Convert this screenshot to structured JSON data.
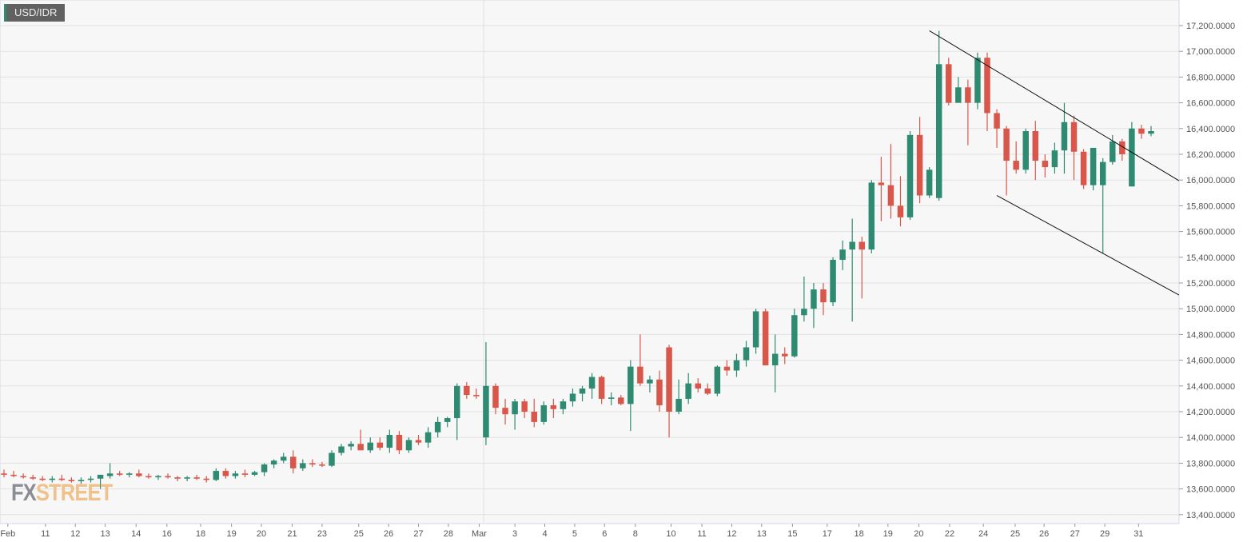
{
  "symbol": "USD/IDR",
  "logo": {
    "part1": "FX",
    "part2": "STREET"
  },
  "colors": {
    "up": "#2e8b72",
    "down": "#d9574a",
    "background": "#f7f7f7",
    "grid": "#e2e2e2",
    "border": "#d5d9ea",
    "trendline": "#111111"
  },
  "chart_data": {
    "type": "candlestick",
    "title": "USD/IDR",
    "grid": true,
    "ylim": [
      13300,
      17300
    ],
    "y_ticks": [
      "13,400.0000",
      "13,600.0000",
      "13,800.0000",
      "14,000.0000",
      "14,200.0000",
      "14,400.0000",
      "14,600.0000",
      "14,800.0000",
      "15,000.0000",
      "15,200.0000",
      "15,400.0000",
      "15,600.0000",
      "15,800.0000",
      "16,000.0000",
      "16,200.0000",
      "16,400.0000",
      "16,600.0000",
      "16,800.0000",
      "17,000.0000",
      "17,200.0000"
    ],
    "y_tick_values": [
      13400,
      13600,
      13800,
      14000,
      14200,
      14400,
      14600,
      14800,
      15000,
      15200,
      15400,
      15600,
      15800,
      16000,
      16200,
      16400,
      16600,
      16800,
      17000,
      17200
    ],
    "x_ticks": [
      {
        "label": "Feb",
        "i": 0.4
      },
      {
        "label": "11",
        "i": 4.3
      },
      {
        "label": "12",
        "i": 7.4
      },
      {
        "label": "13",
        "i": 10.5
      },
      {
        "label": "14",
        "i": 13.7
      },
      {
        "label": "16",
        "i": 16.9
      },
      {
        "label": "18",
        "i": 20.4
      },
      {
        "label": "19",
        "i": 23.6
      },
      {
        "label": "20",
        "i": 26.7
      },
      {
        "label": "21",
        "i": 29.9
      },
      {
        "label": "23",
        "i": 33
      },
      {
        "label": "25",
        "i": 36.8
      },
      {
        "label": "26",
        "i": 39.9
      },
      {
        "label": "27",
        "i": 43
      },
      {
        "label": "28",
        "i": 46.1
      },
      {
        "label": "Mar",
        "i": 49.3
      },
      {
        "label": "3",
        "i": 53
      },
      {
        "label": "4",
        "i": 56.1
      },
      {
        "label": "5",
        "i": 59.2
      },
      {
        "label": "6",
        "i": 62.3
      },
      {
        "label": "8",
        "i": 65.5
      },
      {
        "label": "10",
        "i": 69.2
      },
      {
        "label": "11",
        "i": 72.4
      },
      {
        "label": "12",
        "i": 75.5
      },
      {
        "label": "13",
        "i": 78.6
      },
      {
        "label": "15",
        "i": 81.8
      },
      {
        "label": "17",
        "i": 85.4
      },
      {
        "label": "18",
        "i": 88.7
      },
      {
        "label": "19",
        "i": 91.7
      },
      {
        "label": "20",
        "i": 94.9
      },
      {
        "label": "22",
        "i": 98.1
      },
      {
        "label": "24",
        "i": 101.6
      },
      {
        "label": "25",
        "i": 104.9
      },
      {
        "label": "26",
        "i": 107.9
      },
      {
        "label": "27",
        "i": 111.1
      },
      {
        "label": "29",
        "i": 114.2
      },
      {
        "label": "31",
        "i": 117.7
      }
    ],
    "ohlc": [
      [
        13720,
        13750,
        13690,
        13710
      ],
      [
        13710,
        13740,
        13690,
        13700
      ],
      [
        13700,
        13720,
        13680,
        13690
      ],
      [
        13690,
        13710,
        13670,
        13680
      ],
      [
        13680,
        13700,
        13660,
        13670
      ],
      [
        13670,
        13700,
        13650,
        13680
      ],
      [
        13680,
        13710,
        13660,
        13670
      ],
      [
        13670,
        13690,
        13650,
        13660
      ],
      [
        13660,
        13690,
        13640,
        13670
      ],
      [
        13670,
        13700,
        13650,
        13680
      ],
      [
        13680,
        13700,
        13600,
        13710
      ],
      [
        13700,
        13800,
        13680,
        13720
      ],
      [
        13720,
        13740,
        13700,
        13710
      ],
      [
        13710,
        13730,
        13690,
        13720
      ],
      [
        13720,
        13750,
        13690,
        13700
      ],
      [
        13700,
        13720,
        13680,
        13690
      ],
      [
        13690,
        13710,
        13670,
        13700
      ],
      [
        13700,
        13720,
        13680,
        13690
      ],
      [
        13690,
        13700,
        13660,
        13680
      ],
      [
        13680,
        13700,
        13660,
        13690
      ],
      [
        13690,
        13710,
        13670,
        13680
      ],
      [
        13680,
        13700,
        13650,
        13670
      ],
      [
        13670,
        13760,
        13660,
        13740
      ],
      [
        13740,
        13760,
        13680,
        13700
      ],
      [
        13700,
        13740,
        13680,
        13720
      ],
      [
        13720,
        13750,
        13690,
        13710
      ],
      [
        13710,
        13740,
        13700,
        13730
      ],
      [
        13730,
        13800,
        13700,
        13790
      ],
      [
        13790,
        13830,
        13760,
        13820
      ],
      [
        13820,
        13880,
        13800,
        13850
      ],
      [
        13850,
        13900,
        13720,
        13760
      ],
      [
        13760,
        13830,
        13740,
        13800
      ],
      [
        13800,
        13830,
        13770,
        13790
      ],
      [
        13790,
        13810,
        13770,
        13780
      ],
      [
        13780,
        13900,
        13770,
        13880
      ],
      [
        13880,
        13950,
        13860,
        13930
      ],
      [
        13930,
        13970,
        13900,
        13950
      ],
      [
        13950,
        14060,
        13900,
        13900
      ],
      [
        13900,
        14000,
        13880,
        13960
      ],
      [
        13960,
        14000,
        13900,
        13920
      ],
      [
        13920,
        14060,
        13880,
        14020
      ],
      [
        14020,
        14050,
        13870,
        13900
      ],
      [
        13900,
        14000,
        13880,
        13980
      ],
      [
        13980,
        14020,
        13940,
        13960
      ],
      [
        13960,
        14080,
        13920,
        14040
      ],
      [
        14040,
        14160,
        14000,
        14120
      ],
      [
        14120,
        14160,
        14080,
        14150
      ],
      [
        14150,
        14420,
        13980,
        14400
      ],
      [
        14400,
        14430,
        14300,
        14330
      ],
      [
        14330,
        14380,
        14300,
        14320
      ],
      [
        14000,
        14740,
        13940,
        14400
      ],
      [
        14400,
        14420,
        14180,
        14230
      ],
      [
        14230,
        14300,
        14100,
        14180
      ],
      [
        14180,
        14300,
        14060,
        14280
      ],
      [
        14280,
        14300,
        14150,
        14200
      ],
      [
        14200,
        14300,
        14080,
        14120
      ],
      [
        14120,
        14280,
        14100,
        14250
      ],
      [
        14250,
        14300,
        14150,
        14220
      ],
      [
        14220,
        14300,
        14180,
        14280
      ],
      [
        14280,
        14380,
        14240,
        14340
      ],
      [
        14340,
        14400,
        14280,
        14380
      ],
      [
        14380,
        14500,
        14300,
        14470
      ],
      [
        14470,
        14480,
        14260,
        14300
      ],
      [
        14300,
        14350,
        14250,
        14310
      ],
      [
        14310,
        14330,
        14250,
        14260
      ],
      [
        14260,
        14600,
        14050,
        14550
      ],
      [
        14550,
        14800,
        14400,
        14420
      ],
      [
        14420,
        14480,
        14350,
        14450
      ],
      [
        14450,
        14520,
        14200,
        14250
      ],
      [
        14700,
        14720,
        14000,
        14200
      ],
      [
        14200,
        14450,
        14180,
        14300
      ],
      [
        14300,
        14500,
        14260,
        14420
      ],
      [
        14420,
        14460,
        14350,
        14380
      ],
      [
        14380,
        14420,
        14330,
        14340
      ],
      [
        14340,
        14560,
        14320,
        14550
      ],
      [
        14550,
        14600,
        14480,
        14520
      ],
      [
        14520,
        14650,
        14470,
        14600
      ],
      [
        14600,
        14750,
        14550,
        14700
      ],
      [
        14700,
        15000,
        14650,
        14980
      ],
      [
        14980,
        15000,
        14560,
        14560
      ],
      [
        14560,
        14800,
        14350,
        14650
      ],
      [
        14650,
        14700,
        14570,
        14630
      ],
      [
        14630,
        15000,
        14620,
        14950
      ],
      [
        14950,
        15250,
        14900,
        15000
      ],
      [
        15000,
        15200,
        14850,
        15150
      ],
      [
        15150,
        15200,
        14950,
        15050
      ],
      [
        15050,
        15400,
        15020,
        15380
      ],
      [
        15380,
        15530,
        15300,
        15460
      ],
      [
        15460,
        15700,
        14900,
        15520
      ],
      [
        15520,
        15560,
        15080,
        15460
      ],
      [
        15460,
        16000,
        15430,
        15980
      ],
      [
        15980,
        16180,
        15680,
        15960
      ],
      [
        15960,
        16280,
        15700,
        15800
      ],
      [
        15800,
        16030,
        15640,
        15710
      ],
      [
        15710,
        16380,
        15690,
        16350
      ],
      [
        16350,
        16490,
        15820,
        15880
      ],
      [
        15880,
        16100,
        15860,
        16080
      ],
      [
        15860,
        17160,
        15840,
        16900
      ],
      [
        16900,
        16950,
        16580,
        16600
      ],
      [
        16600,
        16800,
        16600,
        16720
      ],
      [
        16720,
        16780,
        16270,
        16600
      ],
      [
        16600,
        16990,
        16550,
        16950
      ],
      [
        16950,
        16990,
        16380,
        16520
      ],
      [
        16520,
        16550,
        16250,
        16400
      ],
      [
        16400,
        16420,
        15880,
        16150
      ],
      [
        16150,
        16300,
        16050,
        16080
      ],
      [
        16080,
        16400,
        16050,
        16380
      ],
      [
        16380,
        16460,
        16000,
        16150
      ],
      [
        16150,
        16200,
        16020,
        16100
      ],
      [
        16100,
        16290,
        16050,
        16230
      ],
      [
        16230,
        16600,
        16050,
        16450
      ],
      [
        16450,
        16500,
        16000,
        16220
      ],
      [
        16220,
        16240,
        15930,
        15960
      ],
      [
        15960,
        16250,
        15920,
        16250
      ],
      [
        15960,
        16170,
        15430,
        16140
      ],
      [
        16140,
        16350,
        16120,
        16300
      ],
      [
        16300,
        16320,
        16150,
        16200
      ],
      [
        15950,
        16450,
        15950,
        16400
      ],
      [
        16400,
        16430,
        16320,
        16360
      ],
      [
        16360,
        16420,
        16340,
        16380
      ]
    ],
    "trendlines": [
      {
        "name": "upper-channel",
        "points": [
          [
            96,
            17160
          ],
          [
            100,
            16980
          ]
        ]
      },
      {
        "name": "lower-channel",
        "points": [
          [
            103,
            15880
          ],
          [
            114,
            15430
          ]
        ]
      }
    ]
  }
}
